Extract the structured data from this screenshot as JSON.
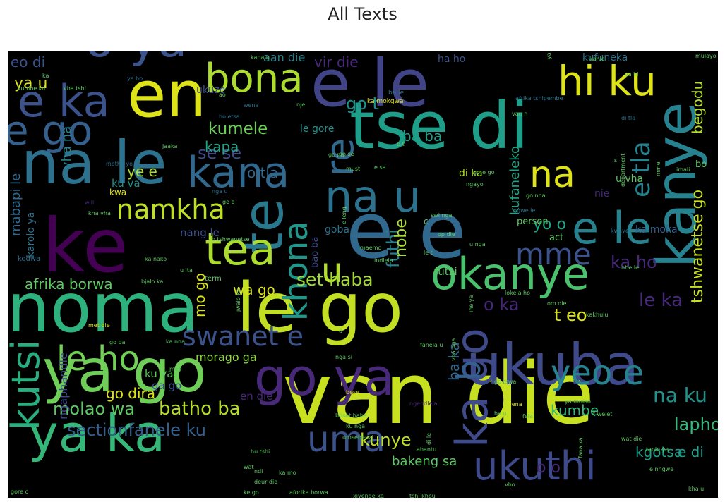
{
  "chart_data": {
    "type": "wordcloud",
    "title": "All Texts",
    "background": "#000000",
    "words": [
      {
        "text": "van die",
        "weight": 100,
        "color": "#c7e020"
      },
      {
        "text": "noma",
        "weight": 95,
        "color": "#2db27d"
      },
      {
        "text": "le go",
        "weight": 94,
        "color": "#c2df23"
      },
      {
        "text": "ke",
        "weight": 92,
        "color": "#440154"
      },
      {
        "text": "e e",
        "weight": 90,
        "color": "#31688e"
      },
      {
        "text": "ukuba",
        "weight": 85,
        "color": "#3e4a89"
      },
      {
        "text": "kanye",
        "weight": 84,
        "color": "#26828e"
      },
      {
        "text": "tse di",
        "weight": 83,
        "color": "#1f9e89"
      },
      {
        "text": "na le",
        "weight": 80,
        "color": "#2c728e"
      },
      {
        "text": "ya go",
        "weight": 79,
        "color": "#6ece58"
      },
      {
        "text": "ya ka",
        "weight": 73,
        "color": "#35b779"
      },
      {
        "text": "e le",
        "weight": 72,
        "color": "#414487"
      },
      {
        "text": "en",
        "weight": 70,
        "color": "#dde318"
      },
      {
        "text": "o ya",
        "weight": 66,
        "color": "#3b528b"
      },
      {
        "text": "te",
        "weight": 66,
        "color": "#2a788e"
      },
      {
        "text": "okanye",
        "weight": 62,
        "color": "#4ac16d"
      },
      {
        "text": "go ya",
        "weight": 61,
        "color": "#482878"
      },
      {
        "text": "e ka",
        "weight": 58,
        "color": "#3b528b"
      },
      {
        "text": "kana",
        "weight": 57,
        "color": "#31688e"
      },
      {
        "text": "na u",
        "weight": 56,
        "color": "#2c728e"
      },
      {
        "text": "ka go",
        "weight": 55,
        "color": "#3e4a89"
      },
      {
        "text": "ukuthi",
        "weight": 55,
        "color": "#3e4a89"
      },
      {
        "text": "kutsi",
        "weight": 55,
        "color": "#29af7f"
      },
      {
        "text": "hi ku",
        "weight": 54,
        "color": "#dde318"
      },
      {
        "text": "tea",
        "weight": 53,
        "color": "#addc30"
      },
      {
        "text": "bona",
        "weight": 51,
        "color": "#addc30"
      },
      {
        "text": "le ho",
        "weight": 50,
        "color": "#73d056"
      },
      {
        "text": "uma",
        "weight": 49,
        "color": "#3b528b"
      },
      {
        "text": "e le",
        "weight": 48,
        "color": "#26828e"
      },
      {
        "text": "e go",
        "weight": 47,
        "color": "#355f8d"
      },
      {
        "text": "re",
        "weight": 46,
        "color": "#31688e"
      },
      {
        "text": "na",
        "weight": 45,
        "color": "#dde318"
      },
      {
        "text": "yeo e",
        "weight": 44,
        "color": "#26828e"
      },
      {
        "text": "b",
        "weight": 44,
        "color": "#355f8d"
      },
      {
        "text": "khona",
        "weight": 42,
        "color": "#1f988b"
      },
      {
        "text": "namkha",
        "weight": 40,
        "color": "#bddf26"
      },
      {
        "text": "mme",
        "weight": 39,
        "color": "#3b528b"
      },
      {
        "text": "u",
        "weight": 38,
        "color": "#b5de2b"
      },
      {
        "text": "swanet e",
        "weight": 36,
        "color": "#3b528b"
      },
      {
        "text": "e tla",
        "weight": 34,
        "color": "#26828e"
      },
      {
        "text": "sectionfanele ku",
        "weight": 32,
        "color": "#355f8d"
      },
      {
        "text": "batho ba",
        "weight": 31,
        "color": "#b5de2b"
      },
      {
        "text": "na ku",
        "weight": 30,
        "color": "#21918c"
      },
      {
        "text": "tshwanetse go",
        "weight": 29,
        "color": "#c8e020"
      },
      {
        "text": "kunye",
        "weight": 29,
        "color": "#bddf26"
      },
      {
        "text": "lapho",
        "weight": 28,
        "color": "#35b779"
      },
      {
        "text": "le ka",
        "weight": 28,
        "color": "#482878"
      },
      {
        "text": "molao wa",
        "weight": 27,
        "color": "#5ec962"
      },
      {
        "text": "set haba",
        "weight": 27,
        "color": "#a2da37"
      },
      {
        "text": "go t",
        "weight": 27,
        "color": "#21918c"
      },
      {
        "text": "kumele",
        "weight": 26,
        "color": "#6ece58"
      },
      {
        "text": "futhi",
        "weight": 26,
        "color": "#26828e"
      },
      {
        "text": "o ka",
        "weight": 26,
        "color": "#482878"
      },
      {
        "text": "t eo",
        "weight": 25,
        "color": "#dde318"
      },
      {
        "text": "ka ho",
        "weight": 25,
        "color": "#482878"
      },
      {
        "text": "kgotsa",
        "weight": 24,
        "color": "#1f9e89"
      },
      {
        "text": "afrika borwa",
        "weight": 24,
        "color": "#5ec962"
      },
      {
        "text": "mo go",
        "weight": 24,
        "color": "#dde318"
      },
      {
        "text": "se se",
        "weight": 24,
        "color": "#3e4a89"
      },
      {
        "text": "kufaneleko",
        "weight": 22,
        "color": "#20a486"
      },
      {
        "text": "ya u",
        "weight": 22,
        "color": "#dde318"
      },
      {
        "text": "wa go",
        "weight": 22,
        "color": "#dde318"
      },
      {
        "text": "ba ba",
        "weight": 22,
        "color": "#1f9e89"
      },
      {
        "text": "o tla",
        "weight": 22,
        "color": "#31688e"
      },
      {
        "text": "yo o",
        "weight": 22,
        "color": "#20a486"
      },
      {
        "text": "nobe",
        "weight": 22,
        "color": "#addc30"
      },
      {
        "text": "o o",
        "weight": 22,
        "color": "#482878"
      },
      {
        "text": "e di",
        "weight": 21,
        "color": "#1f9e89"
      },
      {
        "text": "go dira",
        "weight": 21,
        "color": "#dde318"
      },
      {
        "text": "kumbe",
        "weight": 21,
        "color": "#35b779"
      },
      {
        "text": "begodu",
        "weight": 20,
        "color": "#b5de2b"
      },
      {
        "text": "kapa",
        "weight": 20,
        "color": "#20a486"
      },
      {
        "text": "ye e",
        "weight": 20,
        "color": "#addc30"
      },
      {
        "text": "bakeng sa",
        "weight": 19,
        "color": "#5ec962"
      },
      {
        "text": "ba ka",
        "weight": 19,
        "color": "#31688e"
      },
      {
        "text": "mabapi le",
        "weight": 19,
        "color": "#31688e"
      },
      {
        "text": "eo di",
        "weight": 19,
        "color": "#3b528b"
      },
      {
        "text": "vir die",
        "weight": 18,
        "color": "#482878"
      },
      {
        "text": "aan die",
        "weight": 17,
        "color": "#26828e"
      },
      {
        "text": "vha na",
        "weight": 18,
        "color": "#26828e"
      },
      {
        "text": "ngaphandle",
        "weight": 16,
        "color": "#3e4a89"
      },
      {
        "text": "morago ga",
        "weight": 15,
        "color": "#8fd744"
      },
      {
        "text": "karolo ya",
        "weight": 15,
        "color": "#2c728e"
      },
      {
        "text": "goba",
        "weight": 15,
        "color": "#2c728e"
      },
      {
        "text": "ka moka",
        "weight": 15,
        "color": "#355f8d"
      },
      {
        "text": "u vha",
        "weight": 15,
        "color": "#5ec962"
      },
      {
        "text": "ku va",
        "weight": 15,
        "color": "#21918c"
      },
      {
        "text": "nang le",
        "weight": 15,
        "color": "#3b528b"
      },
      {
        "text": "futsi",
        "weight": 15,
        "color": "#5ec962"
      },
      {
        "text": "ga go",
        "weight": 15,
        "color": "#3b528b"
      },
      {
        "text": "ku ya",
        "weight": 15,
        "color": "#5ec962"
      },
      {
        "text": "en die",
        "weight": 15,
        "color": "#482878"
      },
      {
        "text": "di ka",
        "weight": 15,
        "color": "#b5de2b"
      },
      {
        "text": "nie",
        "weight": 15,
        "color": "#482878"
      },
      {
        "text": "ukuze",
        "weight": 14,
        "color": "#3b528b"
      },
      {
        "text": "ha ho",
        "weight": 14,
        "color": "#3b528b"
      },
      {
        "text": "kufuneka",
        "weight": 14,
        "color": "#2c728e"
      },
      {
        "text": "le gore",
        "weight": 14,
        "color": "#21918c"
      },
      {
        "text": "bao ba",
        "weight": 13,
        "color": "#3e4a89"
      },
      {
        "text": "person",
        "weight": 12,
        "color": "#5ec962"
      },
      {
        "text": "act",
        "weight": 12,
        "color": "#5ec962"
      },
      {
        "text": "bo",
        "weight": 12,
        "color": "#5ec962"
      },
      {
        "text": "kwa",
        "weight": 12,
        "color": "#dde318"
      },
      {
        "text": "c",
        "weight": 13,
        "color": "#5ec962"
      },
      {
        "text": "kodwa",
        "weight": 10,
        "color": "#2c728e"
      },
      {
        "text": "term",
        "weight": 10,
        "color": "#5ec962"
      },
      {
        "text": "ka mokgwa",
        "weight": 9,
        "color": "#dde318"
      },
      {
        "text": "ba le",
        "weight": 9,
        "color": "#2c728e"
      },
      {
        "text": "kumbe ku",
        "weight": 8,
        "color": "#5ec962"
      },
      {
        "text": "vha tshi",
        "weight": 8,
        "color": "#5ec962"
      },
      {
        "text": "ya ho",
        "weight": 8,
        "color": "#2c728e"
      },
      {
        "text": "ya hi",
        "weight": 8,
        "color": "#5ec962"
      },
      {
        "text": "kahle",
        "weight": 8,
        "color": "#5ec962"
      },
      {
        "text": "mulayo wa",
        "weight": 8,
        "color": "#5ec962"
      },
      {
        "text": "kana u",
        "weight": 8,
        "color": "#5ec962"
      },
      {
        "text": "ao",
        "weight": 8,
        "color": "#5ec962"
      },
      {
        "text": "ho etsa",
        "weight": 8,
        "color": "#2c728e"
      },
      {
        "text": "nje",
        "weight": 8,
        "color": "#5ec962"
      },
      {
        "text": "afrika tshipembe",
        "weight": 8,
        "color": "#2c728e"
      },
      {
        "text": "van n",
        "weight": 8,
        "color": "#5ec962"
      },
      {
        "text": "di tla",
        "weight": 8,
        "color": "#2c728e"
      },
      {
        "text": "jaaka",
        "weight": 8,
        "color": "#5ec962"
      },
      {
        "text": "go na",
        "weight": 8,
        "color": "#5ec962"
      },
      {
        "text": "o t",
        "weight": 8,
        "color": "#5ec962"
      },
      {
        "text": "go se",
        "weight": 8,
        "color": "#5ec962"
      },
      {
        "text": "must",
        "weight": 8,
        "color": "#5ec962"
      },
      {
        "text": "e sa",
        "weight": 8,
        "color": "#5ec962"
      },
      {
        "text": "gore go",
        "weight": 8,
        "color": "#5ec962"
      },
      {
        "text": "imali",
        "weight": 8,
        "color": "#5ec962"
      },
      {
        "text": "department",
        "weight": 8,
        "color": "#5ec962"
      },
      {
        "text": "motho yo",
        "weight": 8,
        "color": "#2c728e"
      },
      {
        "text": "will",
        "weight": 8,
        "color": "#482878"
      },
      {
        "text": "kha vha",
        "weight": 8,
        "color": "#5ec962"
      },
      {
        "text": "nga u",
        "weight": 8,
        "color": "#2c728e"
      },
      {
        "text": "ge e",
        "weight": 8,
        "color": "#5ec962"
      },
      {
        "text": "ngayo",
        "weight": 8,
        "color": "#5ec962"
      },
      {
        "text": "go nna",
        "weight": 8,
        "color": "#5ec962"
      },
      {
        "text": "swi nga",
        "weight": 8,
        "color": "#5ec962"
      },
      {
        "text": "ngwe le",
        "weight": 8,
        "color": "#2c728e"
      },
      {
        "text": "o tshwanetse",
        "weight": 8,
        "color": "#5ec962"
      },
      {
        "text": "op die",
        "weight": 8,
        "color": "#5ec962"
      },
      {
        "text": "kwaye",
        "weight": 8,
        "color": "#2c728e"
      },
      {
        "text": "maemo",
        "weight": 8,
        "color": "#5ec962"
      },
      {
        "text": "u nga",
        "weight": 8,
        "color": "#5ec962"
      },
      {
        "text": "le t",
        "weight": 8,
        "color": "#5ec962"
      },
      {
        "text": "ntle le",
        "weight": 8,
        "color": "#5ec962"
      },
      {
        "text": "ka nako",
        "weight": 8,
        "color": "#5ec962"
      },
      {
        "text": "u ita",
        "weight": 8,
        "color": "#5ec962"
      },
      {
        "text": "indlela",
        "weight": 8,
        "color": "#5ec962"
      },
      {
        "text": "bjalo ka",
        "weight": 8,
        "color": "#5ec962"
      },
      {
        "text": "jwalo ka",
        "weight": 8,
        "color": "#5ec962"
      },
      {
        "text": "lokela ho",
        "weight": 8,
        "color": "#5ec962"
      },
      {
        "text": "om die",
        "weight": 8,
        "color": "#5ec962"
      },
      {
        "text": "kakhulu",
        "weight": 8,
        "color": "#5ec962"
      },
      {
        "text": "met die",
        "weight": 8,
        "color": "#dde318"
      },
      {
        "text": "ka nna",
        "weight": 8,
        "color": "#5ec962"
      },
      {
        "text": "go ba",
        "weight": 8,
        "color": "#5ec962"
      },
      {
        "text": "nga si",
        "weight": 8,
        "color": "#5ec962"
      },
      {
        "text": "fanela u",
        "weight": 8,
        "color": "#5ec962"
      },
      {
        "text": "vha nga",
        "weight": 8,
        "color": "#5ec962"
      },
      {
        "text": "ine ya",
        "weight": 8,
        "color": "#5ec962"
      },
      {
        "text": "may",
        "weight": 8,
        "color": "#5ec962"
      },
      {
        "text": "bese",
        "weight": 8,
        "color": "#dde318"
      },
      {
        "text": "go tswa",
        "weight": 8,
        "color": "#5ec962"
      },
      {
        "text": "yena",
        "weight": 8,
        "color": "#dde318"
      },
      {
        "text": "boset haba",
        "weight": 8,
        "color": "#5ec962"
      },
      {
        "text": "ku nga",
        "weight": 8,
        "color": "#5ec962"
      },
      {
        "text": "umsebenzi",
        "weight": 8,
        "color": "#5ec962"
      },
      {
        "text": "ngendlela",
        "weight": 8,
        "color": "#482878"
      },
      {
        "text": "ha u",
        "weight": 8,
        "color": "#5ec962"
      },
      {
        "text": "fela",
        "weight": 8,
        "color": "#5ec962"
      },
      {
        "text": "t welet",
        "weight": 8,
        "color": "#5ec962"
      },
      {
        "text": "ya molao",
        "weight": 8,
        "color": "#5ec962"
      },
      {
        "text": "hu tshi",
        "weight": 8,
        "color": "#5ec962"
      },
      {
        "text": "wat",
        "weight": 8,
        "color": "#5ec962"
      },
      {
        "text": "deur die",
        "weight": 8,
        "color": "#5ec962"
      },
      {
        "text": "ndi",
        "weight": 8,
        "color": "#5ec962"
      },
      {
        "text": "ke go",
        "weight": 8,
        "color": "#5ec962"
      },
      {
        "text": "gore o",
        "weight": 8,
        "color": "#5ec962"
      },
      {
        "text": "aforika borwa",
        "weight": 8,
        "color": "#5ec962"
      },
      {
        "text": "xiyenge xa",
        "weight": 8,
        "color": "#5ec962"
      },
      {
        "text": "tshi khou",
        "weight": 8,
        "color": "#5ec962"
      },
      {
        "text": "vho",
        "weight": 8,
        "color": "#5ec962"
      },
      {
        "text": "abantu",
        "weight": 8,
        "color": "#5ec962"
      },
      {
        "text": "taolo ya",
        "weight": 8,
        "color": "#5ec962"
      },
      {
        "text": "e nngwe",
        "weight": 8,
        "color": "#5ec962"
      },
      {
        "text": "kha u",
        "weight": 8,
        "color": "#5ec962"
      },
      {
        "text": "wat die",
        "weight": 8,
        "color": "#5ec962"
      },
      {
        "text": "fana ka",
        "weight": 8,
        "color": "#5ec962"
      },
      {
        "text": "di le",
        "weight": 8,
        "color": "#5ec962"
      },
      {
        "text": "ka mo",
        "weight": 8,
        "color": "#5ec962"
      },
      {
        "text": "wena",
        "weight": 8,
        "color": "#2c728e"
      },
      {
        "text": "e leng",
        "weight": 8,
        "color": "#5ec962"
      },
      {
        "text": "s",
        "weight": 8,
        "color": "#5ec962"
      },
      {
        "text": "d",
        "weight": 8,
        "color": "#5ec962"
      },
      {
        "text": "ka",
        "weight": 8,
        "color": "#5ec962"
      },
      {
        "text": "mme",
        "weight": 8,
        "color": "#5ec962"
      },
      {
        "text": "ya nga",
        "weight": 8,
        "color": "#5ec962"
      }
    ]
  }
}
